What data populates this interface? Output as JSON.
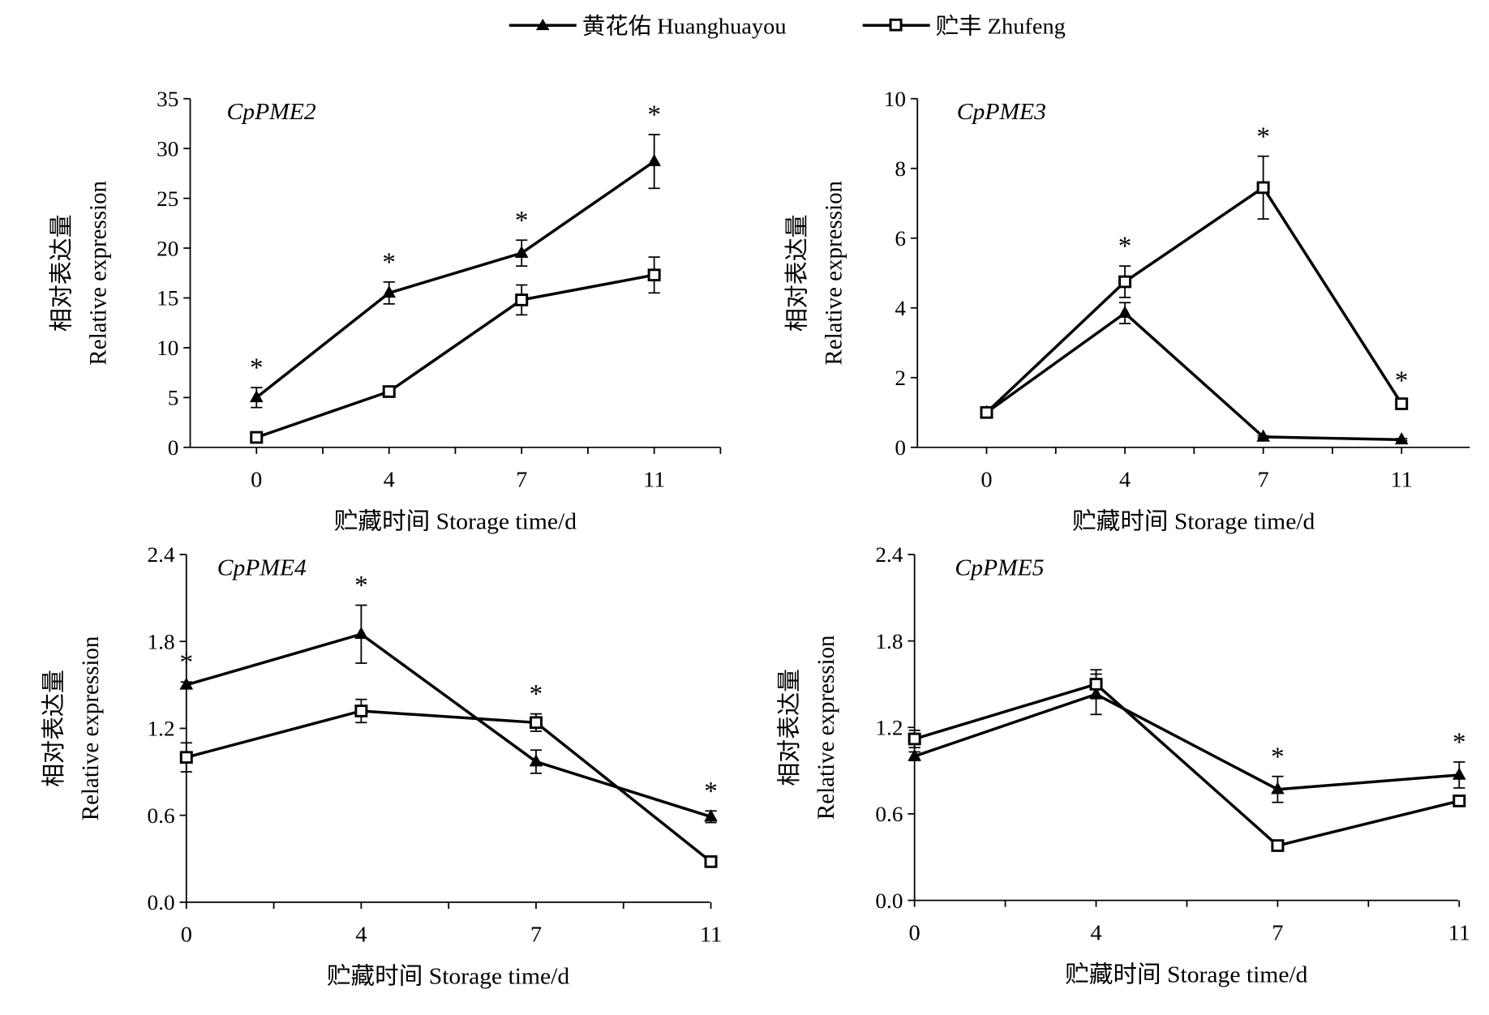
{
  "legend": {
    "placement": "top-center",
    "items": [
      {
        "label": "黄花佑 Huanghuayou",
        "marker": "filled-triangle"
      },
      {
        "label": "贮丰 Zhufeng",
        "marker": "open-square"
      }
    ]
  },
  "colors": {
    "line": "#000000",
    "background": "#ffffff"
  },
  "chart_data": [
    {
      "type": "line",
      "title": "CpPME2",
      "xlabel": "贮藏时间 Storage time/d",
      "ylabel": [
        "相对表达量",
        "Relative expression"
      ],
      "categories": [
        "0",
        "4",
        "7",
        "11"
      ],
      "ylim": [
        0,
        35
      ],
      "yticks": [
        "0",
        "5",
        "10",
        "15",
        "20",
        "25",
        "30",
        "35"
      ],
      "series": [
        {
          "name": "黄花佑 Huanghuayou",
          "values": [
            5.0,
            15.5,
            19.5,
            28.7
          ],
          "errors": [
            1.0,
            1.1,
            1.3,
            2.7
          ]
        },
        {
          "name": "贮丰 Zhufeng",
          "values": [
            1.0,
            5.6,
            14.8,
            17.3
          ],
          "errors": [
            0.3,
            0.3,
            1.5,
            1.8
          ]
        }
      ],
      "significance": [
        "*",
        "*",
        "*",
        "*"
      ]
    },
    {
      "type": "line",
      "title": "CpPME3",
      "xlabel": "贮藏时间 Storage time/d",
      "ylabel": [
        "相对表达量",
        "Relative expression"
      ],
      "categories": [
        "0",
        "4",
        "7",
        "11"
      ],
      "ylim": [
        0,
        10
      ],
      "yticks": [
        "0",
        "2",
        "4",
        "6",
        "8",
        "10"
      ],
      "series": [
        {
          "name": "黄花佑 Huanghuayou",
          "values": [
            1.0,
            3.85,
            0.3,
            0.22
          ],
          "errors": [
            0.05,
            0.3,
            0.03,
            0.03
          ]
        },
        {
          "name": "贮丰 Zhufeng",
          "values": [
            1.0,
            4.75,
            7.45,
            1.25
          ],
          "errors": [
            0.08,
            0.45,
            0.9,
            0.1
          ]
        }
      ],
      "significance": [
        "",
        "*",
        "*",
        "*"
      ]
    },
    {
      "type": "line",
      "title": "CpPME4",
      "xlabel": "贮藏时间 Storage time/d",
      "ylabel": [
        "相对表达量",
        "Relative expression"
      ],
      "categories": [
        "0",
        "4",
        "7",
        "11"
      ],
      "ylim": [
        0,
        2.4
      ],
      "yticks": [
        "0.0",
        "0.6",
        "1.2",
        "1.8",
        "2.4"
      ],
      "series": [
        {
          "name": "黄花佑 Huanghuayou",
          "values": [
            1.5,
            1.85,
            0.97,
            0.59
          ],
          "errors": [
            0.02,
            0.2,
            0.08,
            0.04
          ]
        },
        {
          "name": "贮丰 Zhufeng",
          "values": [
            1.0,
            1.32,
            1.24,
            0.28
          ],
          "errors": [
            0.1,
            0.08,
            0.06,
            0.02
          ]
        }
      ],
      "significance": [
        "*",
        "*",
        "*",
        "*"
      ]
    },
    {
      "type": "line",
      "title": "CpPME5",
      "xlabel": "贮藏时间 Storage time/d",
      "ylabel": [
        "相对表达量",
        "Relative expression"
      ],
      "categories": [
        "0",
        "4",
        "7",
        "11"
      ],
      "ylim": [
        0,
        2.4
      ],
      "yticks": [
        "0.0",
        "0.6",
        "1.2",
        "1.8",
        "2.4"
      ],
      "series": [
        {
          "name": "黄花佑 Huanghuayou",
          "values": [
            1.0,
            1.43,
            0.77,
            0.87
          ],
          "errors": [
            0.03,
            0.14,
            0.09,
            0.09
          ]
        },
        {
          "name": "贮丰 Zhufeng",
          "values": [
            1.12,
            1.5,
            0.38,
            0.69
          ],
          "errors": [
            0.06,
            0.1,
            0.02,
            0.02
          ]
        }
      ],
      "significance": [
        "",
        "",
        "*",
        "*"
      ]
    }
  ]
}
